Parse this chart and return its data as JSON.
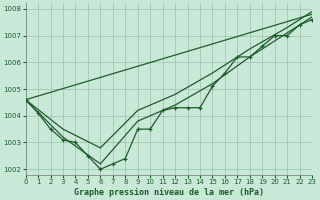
{
  "title": "Graphe pression niveau de la mer (hPa)",
  "background_color": "#c8e8d8",
  "grid_color": "#9dbfad",
  "line_color": "#1e5c2a",
  "xlim": [
    0,
    23
  ],
  "ylim": [
    1001.8,
    1008.2
  ],
  "yticks": [
    1002,
    1003,
    1004,
    1005,
    1006,
    1007,
    1008
  ],
  "xticks": [
    0,
    1,
    2,
    3,
    4,
    5,
    6,
    7,
    8,
    9,
    10,
    11,
    12,
    13,
    14,
    15,
    16,
    17,
    18,
    19,
    20,
    21,
    22,
    23
  ],
  "series1_x": [
    0,
    1,
    2,
    3,
    4,
    5,
    6,
    7,
    8,
    9,
    10,
    11,
    12,
    13,
    14,
    15,
    16,
    17,
    18,
    19,
    20,
    21,
    22,
    23
  ],
  "series1_y": [
    1004.6,
    1004.1,
    1003.5,
    1003.1,
    1003.0,
    1002.5,
    1002.0,
    1002.2,
    1002.4,
    1003.5,
    1003.5,
    1004.2,
    1004.3,
    1004.3,
    1004.3,
    1005.1,
    1005.6,
    1006.2,
    1006.2,
    1006.6,
    1007.0,
    1007.0,
    1007.4,
    1007.6
  ],
  "series2_x": [
    0,
    3,
    6,
    9,
    12,
    15,
    18,
    21,
    23
  ],
  "series2_y": [
    1004.6,
    1003.2,
    1002.2,
    1003.8,
    1004.4,
    1005.2,
    1006.2,
    1007.1,
    1007.7
  ],
  "series3_x": [
    0,
    3,
    6,
    9,
    12,
    15,
    18,
    21,
    23
  ],
  "series3_y": [
    1004.6,
    1003.5,
    1002.8,
    1004.2,
    1004.8,
    1005.6,
    1006.5,
    1007.3,
    1007.9
  ],
  "series4_x": [
    0,
    23
  ],
  "series4_y": [
    1004.6,
    1007.8
  ],
  "xlabel_fontsize": 6,
  "tick_fontsize": 5
}
